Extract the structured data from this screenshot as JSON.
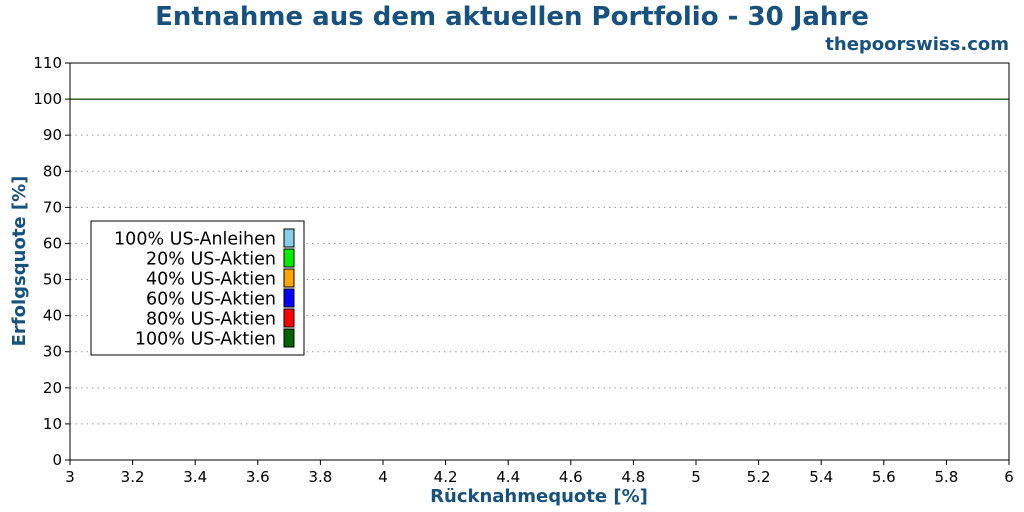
{
  "chart_data": {
    "type": "line",
    "title": "Entnahme aus dem aktuellen Portfolio - 30 Jahre",
    "subtitle": "thepoorswiss.com",
    "xlabel": "Rücknahmequote [%]",
    "ylabel": "Erfolgsquote [%]",
    "xlim": [
      3,
      6
    ],
    "ylim": [
      0,
      110
    ],
    "x_ticks": [
      "3",
      "3.2",
      "3.4",
      "3.6",
      "3.8",
      "4",
      "4.2",
      "4.4",
      "4.6",
      "4.8",
      "5",
      "5.2",
      "5.4",
      "5.6",
      "5.8",
      "6"
    ],
    "y_ticks": [
      "0",
      "10",
      "20",
      "30",
      "40",
      "50",
      "60",
      "70",
      "80",
      "90",
      "100",
      "110"
    ],
    "grid": "horizontal dotted",
    "legend_position": "center-left",
    "series": [
      {
        "name": "100% US-Anleihen",
        "color": "#87ceeb",
        "x": [
          3,
          6
        ],
        "y": [
          100,
          100
        ]
      },
      {
        "name": "20% US-Aktien",
        "color": "#00ee00",
        "x": [
          3,
          6
        ],
        "y": [
          100,
          100
        ]
      },
      {
        "name": "40% US-Aktien",
        "color": "#ffa500",
        "x": [
          3,
          6
        ],
        "y": [
          100,
          100
        ]
      },
      {
        "name": "60% US-Aktien",
        "color": "#0000ff",
        "x": [
          3,
          6
        ],
        "y": [
          100,
          100
        ]
      },
      {
        "name": "80% US-Aktien",
        "color": "#ff0000",
        "x": [
          3,
          6
        ],
        "y": [
          100,
          100
        ]
      },
      {
        "name": "100% US-Aktien",
        "color": "#006400",
        "x": [
          3,
          6
        ],
        "y": [
          100,
          100
        ]
      }
    ]
  }
}
